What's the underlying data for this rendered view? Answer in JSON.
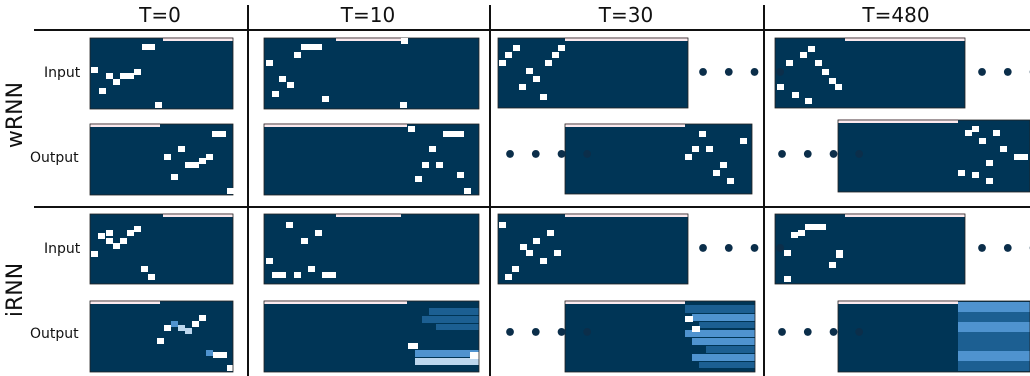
{
  "columns": [
    "T=0",
    "T=10",
    "T=30",
    "T=480"
  ],
  "rows": [
    {
      "label": "wRNN",
      "subrows": [
        "Input",
        "Output"
      ]
    },
    {
      "label": "iRNN",
      "subrows": [
        "Input",
        "Output"
      ]
    }
  ],
  "ellipsis": "• • • •",
  "colors": {
    "background_cell": "#003556",
    "pixel_on": "#ffffff",
    "blur_light": "#bcd7ee",
    "blur_mid": "#4f93cf",
    "blur_dark": "#1c5f92",
    "top_bar": "#fbe9ee",
    "divider": "#111111"
  }
}
